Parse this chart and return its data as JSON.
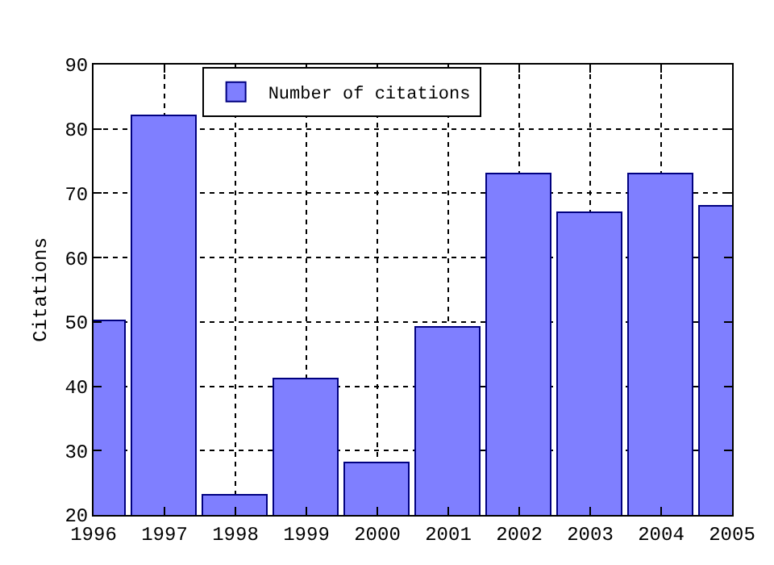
{
  "chart_data": {
    "type": "bar",
    "ylabel": "Citations",
    "x": [
      1996,
      1997,
      1998,
      1999,
      2000,
      2001,
      2002,
      2003,
      2004,
      2005
    ],
    "series": [
      {
        "name": "Number of citations",
        "color": "#7f7fff",
        "values": [
          50,
          82,
          23,
          41,
          28,
          49,
          73,
          67,
          73,
          68
        ]
      }
    ],
    "xlim": [
      1996,
      2005
    ],
    "xticks": [
      1996,
      1997,
      1998,
      1999,
      2000,
      2001,
      2002,
      2003,
      2004,
      2005
    ],
    "ylim": [
      20,
      90
    ],
    "yticks": [
      20,
      30,
      40,
      50,
      60,
      70,
      80,
      90
    ],
    "grid": true,
    "legend": "top left"
  }
}
